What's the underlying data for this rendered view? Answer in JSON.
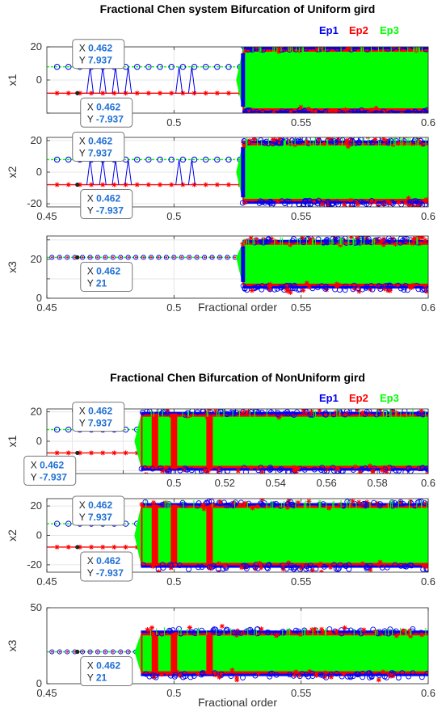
{
  "colors": {
    "Ep1": "#0000ee",
    "Ep2": "#ff0000",
    "Ep3": "#00ff00",
    "datatip": "#1f6fd6"
  },
  "chart_data": [
    {
      "type": "scatter",
      "title": "Fractional Chen system Bifurcation of Uniform gird",
      "xlabel": "Fractional order",
      "legend": [
        "Ep1",
        "Ep2",
        "Ep3"
      ],
      "legend_placement": "top-right",
      "grid": true,
      "grid_type": "uniform",
      "onset": 0.527,
      "panels": [
        {
          "ylabel": "x1",
          "xlim": [
            0.45,
            0.6
          ],
          "ylim": [
            -20,
            20
          ],
          "xticks": [
            0.5,
            0.55,
            0.6
          ],
          "xticklabels": [
            "0.5",
            "0.55",
            "0.6"
          ],
          "yticks": [
            -20,
            0,
            20
          ],
          "yticklabels": [
            "",
            "0",
            "20"
          ],
          "stable_high": 7.937,
          "stable_low": -7.937,
          "chaos_range": [
            -20,
            20
          ],
          "datatips": [
            {
              "x": 0.462,
              "y": 7.937,
              "x_text": "0.462",
              "y_text": "7.937"
            },
            {
              "x": 0.462,
              "y": -7.937,
              "x_text": "0.462",
              "y_text": "-7.937"
            }
          ]
        },
        {
          "ylabel": "x2",
          "xlim": [
            0.45,
            0.6
          ],
          "ylim": [
            -22,
            22
          ],
          "xticks": [
            0.45,
            0.5,
            0.55,
            0.6
          ],
          "xticklabels": [
            "0.45",
            "0.5",
            "0.55",
            "0.6"
          ],
          "yticks": [
            -20,
            0,
            20
          ],
          "yticklabels": [
            "-20",
            "0",
            "20"
          ],
          "stable_high": 7.937,
          "stable_low": -7.937,
          "chaos_range": [
            -20,
            20
          ],
          "datatips": [
            {
              "x": 0.462,
              "y": 7.937,
              "x_text": "0.462",
              "y_text": "7.937"
            },
            {
              "x": 0.462,
              "y": -7.937,
              "x_text": "0.462",
              "y_text": "-7.937"
            }
          ]
        },
        {
          "ylabel": "x3",
          "xlim": [
            0.45,
            0.6
          ],
          "ylim": [
            0,
            32
          ],
          "xticks": [
            0.45,
            0.5,
            0.55,
            0.6
          ],
          "xticklabels": [
            "0.45",
            "0.5",
            "0.55",
            "0.6"
          ],
          "yticks": [
            0,
            10,
            20,
            30
          ],
          "yticklabels": [
            "0",
            "",
            "20",
            ""
          ],
          "stable_high": 21,
          "stable_low": 21,
          "chaos_range": [
            5,
            30
          ],
          "datatips": [
            {
              "x": 0.462,
              "y": 21,
              "x_text": "0.462",
              "y_text": "21"
            }
          ]
        }
      ]
    },
    {
      "type": "scatter",
      "title": "Fractional Chen Bifurcation of NonUniform gird",
      "xlabel": "Fractional order",
      "legend": [
        "Ep1",
        "Ep2",
        "Ep3"
      ],
      "legend_placement": "top-right",
      "grid": true,
      "grid_type": "nonuniform",
      "onset": 0.487,
      "red_bands": [
        0.4925,
        0.5,
        0.514
      ],
      "panels": [
        {
          "ylabel": "x1",
          "xlim": [
            0.45,
            0.6
          ],
          "ylim": [
            -22,
            22
          ],
          "xticks": [
            0.46,
            0.48,
            0.5,
            0.52,
            0.54,
            0.56,
            0.58,
            0.6
          ],
          "xticklabels": [
            "",
            "",
            "0.5",
            "0.52",
            "0.54",
            "0.56",
            "0.58",
            "0.6"
          ],
          "yticks": [
            -20,
            0,
            20
          ],
          "yticklabels": [
            "",
            "0",
            "20"
          ],
          "stable_high": 7.937,
          "stable_low": -7.937,
          "chaos_range": [
            -20,
            20
          ],
          "datatips": [
            {
              "x": 0.462,
              "y": 7.937,
              "x_text": "0.462",
              "y_text": "7.937"
            },
            {
              "x": 0.462,
              "y": -7.937,
              "x_text": "0.462",
              "y_text": "-7.937"
            }
          ]
        },
        {
          "ylabel": "x2",
          "xlim": [
            0.45,
            0.6
          ],
          "ylim": [
            -25,
            25
          ],
          "xticks": [
            0.45,
            0.5,
            0.55,
            0.6
          ],
          "xticklabels": [
            "0.45",
            "0.5",
            "0.55",
            "0.6"
          ],
          "yticks": [
            -20,
            0,
            20
          ],
          "yticklabels": [
            "-20",
            "0",
            "20"
          ],
          "stable_high": 7.937,
          "stable_low": -7.937,
          "chaos_range": [
            -22,
            22
          ],
          "datatips": [
            {
              "x": 0.462,
              "y": 7.937,
              "x_text": "0.462",
              "y_text": "7.937"
            },
            {
              "x": 0.462,
              "y": -7.937,
              "x_text": "0.462",
              "y_text": "-7.937"
            }
          ]
        },
        {
          "ylabel": "x3",
          "xlim": [
            0.45,
            0.6
          ],
          "ylim": [
            0,
            50
          ],
          "xticks": [
            0.45,
            0.5,
            0.55,
            0.6
          ],
          "xticklabels": [
            "0.45",
            "0.5",
            "0.55",
            "0.6"
          ],
          "yticks": [
            0,
            50
          ],
          "yticklabels": [
            "0",
            "50"
          ],
          "stable_high": 21,
          "stable_low": 21,
          "chaos_range": [
            5,
            35
          ],
          "datatips": [
            {
              "x": 0.462,
              "y": 21,
              "x_text": "0.462",
              "y_text": "21"
            }
          ]
        }
      ]
    }
  ]
}
